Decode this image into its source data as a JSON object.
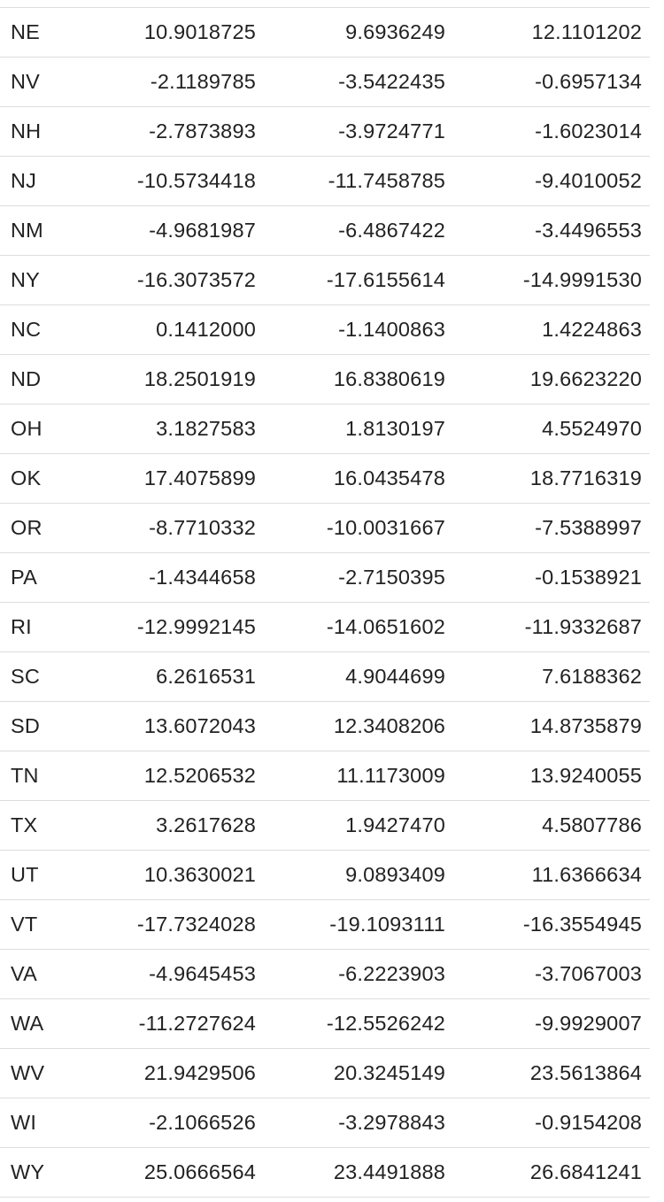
{
  "table": {
    "rows": [
      {
        "state": "NE",
        "values": [
          "10.9018725",
          "9.6936249",
          "12.1101202"
        ]
      },
      {
        "state": "NV",
        "values": [
          "-2.1189785",
          "-3.5422435",
          "-0.6957134"
        ]
      },
      {
        "state": "NH",
        "values": [
          "-2.7873893",
          "-3.9724771",
          "-1.6023014"
        ]
      },
      {
        "state": "NJ",
        "values": [
          "-10.5734418",
          "-11.7458785",
          "-9.4010052"
        ]
      },
      {
        "state": "NM",
        "values": [
          "-4.9681987",
          "-6.4867422",
          "-3.4496553"
        ]
      },
      {
        "state": "NY",
        "values": [
          "-16.3073572",
          "-17.6155614",
          "-14.9991530"
        ]
      },
      {
        "state": "NC",
        "values": [
          "0.1412000",
          "-1.1400863",
          "1.4224863"
        ]
      },
      {
        "state": "ND",
        "values": [
          "18.2501919",
          "16.8380619",
          "19.6623220"
        ]
      },
      {
        "state": "OH",
        "values": [
          "3.1827583",
          "1.8130197",
          "4.5524970"
        ]
      },
      {
        "state": "OK",
        "values": [
          "17.4075899",
          "16.0435478",
          "18.7716319"
        ]
      },
      {
        "state": "OR",
        "values": [
          "-8.7710332",
          "-10.0031667",
          "-7.5388997"
        ]
      },
      {
        "state": "PA",
        "values": [
          "-1.4344658",
          "-2.7150395",
          "-0.1538921"
        ]
      },
      {
        "state": "RI",
        "values": [
          "-12.9992145",
          "-14.0651602",
          "-11.9332687"
        ]
      },
      {
        "state": "SC",
        "values": [
          "6.2616531",
          "4.9044699",
          "7.6188362"
        ]
      },
      {
        "state": "SD",
        "values": [
          "13.6072043",
          "12.3408206",
          "14.8735879"
        ]
      },
      {
        "state": "TN",
        "values": [
          "12.5206532",
          "11.1173009",
          "13.9240055"
        ]
      },
      {
        "state": "TX",
        "values": [
          "3.2617628",
          "1.9427470",
          "4.5807786"
        ]
      },
      {
        "state": "UT",
        "values": [
          "10.3630021",
          "9.0893409",
          "11.6366634"
        ]
      },
      {
        "state": "VT",
        "values": [
          "-17.7324028",
          "-19.1093111",
          "-16.3554945"
        ]
      },
      {
        "state": "VA",
        "values": [
          "-4.9645453",
          "-6.2223903",
          "-3.7067003"
        ]
      },
      {
        "state": "WA",
        "values": [
          "-11.2727624",
          "-12.5526242",
          "-9.9929007"
        ]
      },
      {
        "state": "WV",
        "values": [
          "21.9429506",
          "20.3245149",
          "23.5613864"
        ]
      },
      {
        "state": "WI",
        "values": [
          "-2.1066526",
          "-3.2978843",
          "-0.9154208"
        ]
      },
      {
        "state": "WY",
        "values": [
          "25.0666564",
          "23.4491888",
          "26.6841241"
        ]
      }
    ]
  }
}
